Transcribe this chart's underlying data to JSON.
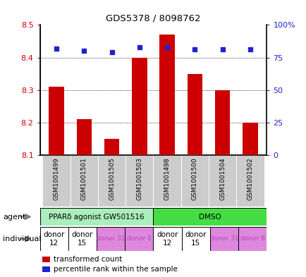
{
  "title": "GDS5378 / 8098762",
  "samples": [
    "GSM1001499",
    "GSM1001501",
    "GSM1001505",
    "GSM1001503",
    "GSM1001498",
    "GSM1001500",
    "GSM1001504",
    "GSM1001502"
  ],
  "bar_values": [
    8.31,
    8.21,
    8.15,
    8.4,
    8.47,
    8.35,
    8.3,
    8.2
  ],
  "percentile_values": [
    82,
    80,
    79,
    83,
    83,
    81,
    81,
    81
  ],
  "bar_bottom": 8.1,
  "ylim_left": [
    8.1,
    8.5
  ],
  "ylim_right": [
    0,
    100
  ],
  "yticks_left": [
    8.1,
    8.2,
    8.3,
    8.4,
    8.5
  ],
  "yticks_right": [
    0,
    25,
    50,
    75,
    100
  ],
  "ytick_right_labels": [
    "0",
    "25",
    "50",
    "75",
    "100%"
  ],
  "bar_color": "#cc0000",
  "dot_color": "#2222cc",
  "agent_groups": [
    {
      "text": "PPARδ agonist GW501516",
      "start": 0,
      "end": 4,
      "color": "#aaeebb"
    },
    {
      "text": "DMSO",
      "start": 4,
      "end": 8,
      "color": "#44dd44"
    }
  ],
  "individual_labels": [
    "donor\n12",
    "donor\n15",
    "donor 31",
    "donor 8",
    "donor\n12",
    "donor\n15",
    "donor 31",
    "donor 8"
  ],
  "individual_bg_colors": [
    "#ffffff",
    "#ffffff",
    "#dd88dd",
    "#dd88dd",
    "#ffffff",
    "#ffffff",
    "#dd88dd",
    "#dd88dd"
  ],
  "individual_text_colors": [
    "#000000",
    "#000000",
    "#bb44bb",
    "#bb44bb",
    "#000000",
    "#000000",
    "#bb44bb",
    "#bb44bb"
  ],
  "individual_text_sizes": [
    7.5,
    7.5,
    6.5,
    6.5,
    7.5,
    7.5,
    6.5,
    6.5
  ],
  "x_positions": [
    0,
    1,
    2,
    3,
    4,
    5,
    6,
    7
  ],
  "legend_bar_label": "transformed count",
  "legend_dot_label": "percentile rank within the sample",
  "left_tick_color": "#cc0000",
  "right_tick_color": "#2222cc",
  "sample_label_bg": "#cccccc",
  "grid_dotted_values": [
    8.2,
    8.3,
    8.4
  ],
  "dotted_line_at_84": 8.4
}
